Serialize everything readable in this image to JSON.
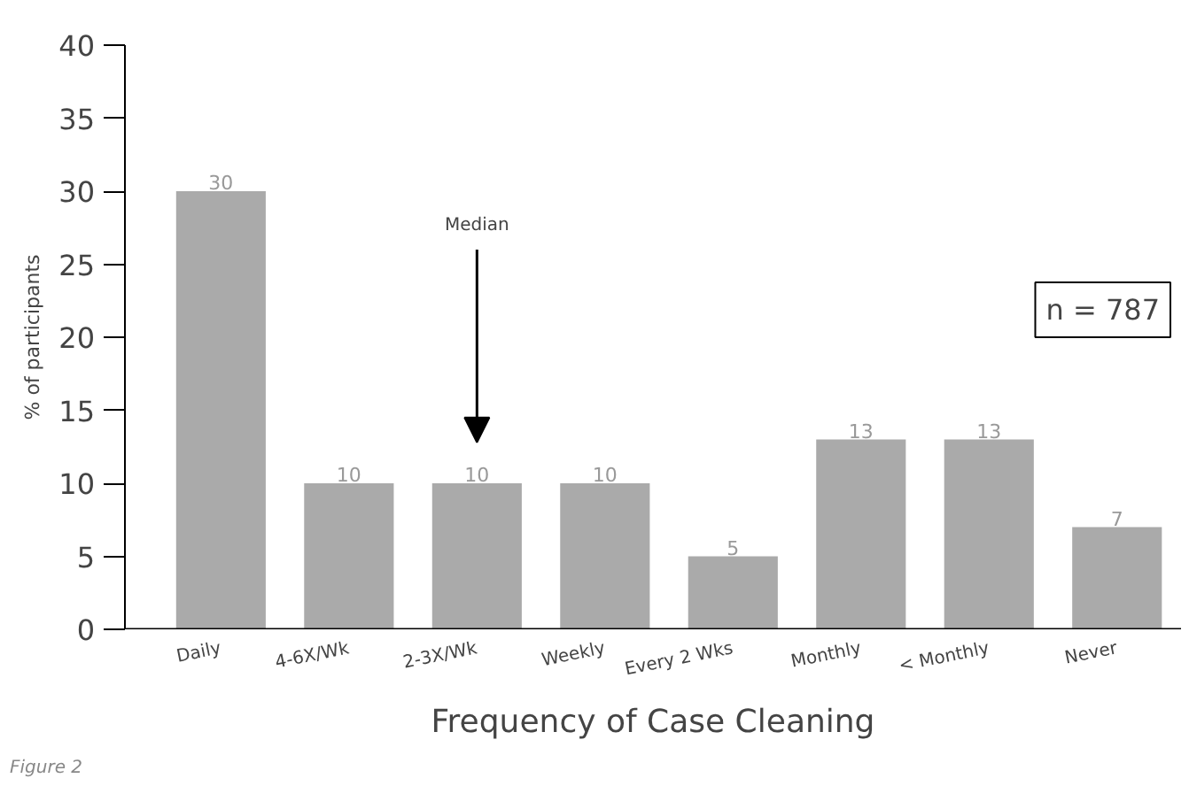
{
  "chart_data": {
    "type": "bar",
    "xlabel": "Frequency of Case Cleaning",
    "ylabel": "% of participants",
    "categories": [
      "Daily",
      "4-6X/Wk",
      "2-3X/Wk",
      "Weekly",
      "Every 2 Wks",
      "Monthly",
      "< Monthly",
      "Never"
    ],
    "values": [
      30,
      10,
      10,
      10,
      5,
      13,
      13,
      7
    ],
    "color": "#aaaaaa",
    "data_labels": true,
    "ylim": [
      0,
      40
    ],
    "yticks": [
      0,
      5,
      10,
      15,
      20,
      25,
      30,
      35,
      40
    ],
    "grid": false,
    "annotations": [
      "Median",
      "n = 787",
      "Figure 2"
    ]
  }
}
